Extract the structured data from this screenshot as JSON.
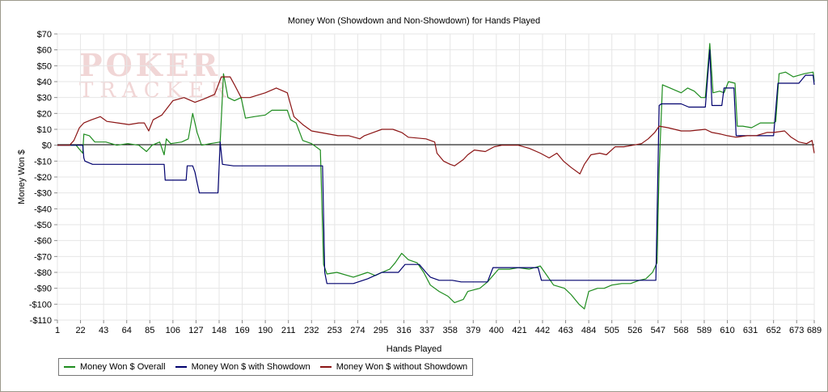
{
  "watermark": {
    "line1": "POKER",
    "line2": "TRACKER"
  },
  "chart_data": {
    "type": "line",
    "title": "Money Won (Showdown and Non-Showdown) for Hands Played",
    "xlabel": "Hands Played",
    "ylabel": "Money Won $",
    "xlim": [
      1,
      689
    ],
    "ylim": [
      -110,
      70
    ],
    "grid": true,
    "legend_position": "bottom-left",
    "x_ticks": [
      1,
      22,
      43,
      64,
      85,
      106,
      127,
      148,
      169,
      190,
      211,
      232,
      253,
      274,
      295,
      316,
      337,
      358,
      379,
      400,
      421,
      442,
      463,
      484,
      505,
      526,
      547,
      568,
      589,
      610,
      631,
      652,
      673,
      689
    ],
    "y_ticks": [
      {
        "v": 70,
        "label": "$70"
      },
      {
        "v": 60,
        "label": "$60"
      },
      {
        "v": 50,
        "label": "$50"
      },
      {
        "v": 40,
        "label": "$40"
      },
      {
        "v": 30,
        "label": "$30"
      },
      {
        "v": 20,
        "label": "$20"
      },
      {
        "v": 10,
        "label": "$10"
      },
      {
        "v": 0,
        "label": "$0"
      },
      {
        "v": -10,
        "label": "-$10"
      },
      {
        "v": -20,
        "label": "-$20"
      },
      {
        "v": -30,
        "label": "-$30"
      },
      {
        "v": -40,
        "label": "-$40"
      },
      {
        "v": -50,
        "label": "-$50"
      },
      {
        "v": -60,
        "label": "-$60"
      },
      {
        "v": -70,
        "label": "-$70"
      },
      {
        "v": -80,
        "label": "-$80"
      },
      {
        "v": -90,
        "label": "-$90"
      },
      {
        "v": -100,
        "label": "-$100"
      },
      {
        "v": -110,
        "label": "-$110"
      }
    ],
    "series": [
      {
        "name": "Money Won $ Overall",
        "color": "#1e8c1e",
        "points": [
          [
            1,
            0
          ],
          [
            18,
            0
          ],
          [
            24,
            -5
          ],
          [
            25,
            7
          ],
          [
            30,
            6
          ],
          [
            35,
            2
          ],
          [
            45,
            2
          ],
          [
            55,
            0
          ],
          [
            65,
            1
          ],
          [
            75,
            0
          ],
          [
            82,
            -4
          ],
          [
            87,
            0
          ],
          [
            94,
            2
          ],
          [
            98,
            -6
          ],
          [
            100,
            4
          ],
          [
            104,
            1
          ],
          [
            114,
            2
          ],
          [
            120,
            4
          ],
          [
            124,
            20
          ],
          [
            128,
            8
          ],
          [
            132,
            0
          ],
          [
            140,
            1
          ],
          [
            149,
            2
          ],
          [
            152,
            45
          ],
          [
            156,
            30
          ],
          [
            162,
            28
          ],
          [
            168,
            30
          ],
          [
            172,
            17
          ],
          [
            180,
            18
          ],
          [
            190,
            19
          ],
          [
            196,
            22
          ],
          [
            206,
            22
          ],
          [
            210,
            22
          ],
          [
            213,
            16
          ],
          [
            218,
            14
          ],
          [
            224,
            3
          ],
          [
            232,
            1
          ],
          [
            240,
            -3
          ],
          [
            243,
            -75
          ],
          [
            246,
            -81
          ],
          [
            255,
            -80
          ],
          [
            270,
            -83
          ],
          [
            283,
            -80
          ],
          [
            290,
            -82
          ],
          [
            296,
            -80
          ],
          [
            303,
            -78
          ],
          [
            308,
            -74
          ],
          [
            314,
            -68
          ],
          [
            320,
            -72
          ],
          [
            328,
            -74
          ],
          [
            334,
            -80
          ],
          [
            340,
            -88
          ],
          [
            348,
            -92
          ],
          [
            356,
            -95
          ],
          [
            362,
            -99
          ],
          [
            370,
            -97
          ],
          [
            374,
            -92
          ],
          [
            385,
            -90
          ],
          [
            392,
            -86
          ],
          [
            402,
            -78
          ],
          [
            412,
            -78
          ],
          [
            420,
            -77
          ],
          [
            430,
            -78
          ],
          [
            440,
            -76
          ],
          [
            447,
            -83
          ],
          [
            452,
            -88
          ],
          [
            462,
            -90
          ],
          [
            468,
            -94
          ],
          [
            475,
            -100
          ],
          [
            480,
            -103
          ],
          [
            484,
            -92
          ],
          [
            492,
            -90
          ],
          [
            498,
            -90
          ],
          [
            505,
            -88
          ],
          [
            514,
            -87
          ],
          [
            522,
            -87
          ],
          [
            530,
            -85
          ],
          [
            536,
            -84
          ],
          [
            542,
            -80
          ],
          [
            546,
            -74
          ],
          [
            548,
            -15
          ],
          [
            551,
            38
          ],
          [
            558,
            36
          ],
          [
            568,
            33
          ],
          [
            574,
            36
          ],
          [
            580,
            34
          ],
          [
            586,
            30
          ],
          [
            590,
            30
          ],
          [
            594,
            64
          ],
          [
            597,
            33
          ],
          [
            603,
            34
          ],
          [
            607,
            33
          ],
          [
            611,
            40
          ],
          [
            617,
            39
          ],
          [
            619,
            12
          ],
          [
            624,
            12
          ],
          [
            632,
            11
          ],
          [
            640,
            14
          ],
          [
            652,
            14
          ],
          [
            654,
            15
          ],
          [
            657,
            45
          ],
          [
            663,
            46
          ],
          [
            670,
            43
          ],
          [
            680,
            45
          ],
          [
            688,
            46
          ],
          [
            689,
            40
          ]
        ]
      },
      {
        "name": "Money Won $ with Showdown",
        "color": "#00006e",
        "points": [
          [
            1,
            0
          ],
          [
            24,
            0
          ],
          [
            25,
            -8
          ],
          [
            26,
            -10
          ],
          [
            33,
            -12
          ],
          [
            98,
            -12
          ],
          [
            99,
            -22
          ],
          [
            114,
            -22
          ],
          [
            118,
            -22
          ],
          [
            119,
            -13
          ],
          [
            124,
            -13
          ],
          [
            126,
            -17
          ],
          [
            130,
            -30
          ],
          [
            144,
            -30
          ],
          [
            147,
            -30
          ],
          [
            149,
            2
          ],
          [
            151,
            -12
          ],
          [
            161,
            -13
          ],
          [
            214,
            -13
          ],
          [
            242,
            -13
          ],
          [
            244,
            -80
          ],
          [
            246,
            -87
          ],
          [
            270,
            -87
          ],
          [
            283,
            -84
          ],
          [
            296,
            -80
          ],
          [
            311,
            -80
          ],
          [
            317,
            -75
          ],
          [
            330,
            -75
          ],
          [
            336,
            -80
          ],
          [
            340,
            -83
          ],
          [
            348,
            -85
          ],
          [
            360,
            -85
          ],
          [
            368,
            -86
          ],
          [
            392,
            -86
          ],
          [
            397,
            -77
          ],
          [
            420,
            -77
          ],
          [
            431,
            -77
          ],
          [
            438,
            -77
          ],
          [
            441,
            -85
          ],
          [
            500,
            -85
          ],
          [
            545,
            -85
          ],
          [
            548,
            25
          ],
          [
            550,
            26
          ],
          [
            568,
            26
          ],
          [
            575,
            24
          ],
          [
            590,
            24
          ],
          [
            594,
            60
          ],
          [
            596,
            25
          ],
          [
            605,
            25
          ],
          [
            607,
            36
          ],
          [
            612,
            36
          ],
          [
            616,
            36
          ],
          [
            618,
            6
          ],
          [
            628,
            6
          ],
          [
            645,
            6
          ],
          [
            652,
            6
          ],
          [
            656,
            39
          ],
          [
            665,
            39
          ],
          [
            675,
            39
          ],
          [
            681,
            44
          ],
          [
            688,
            44
          ],
          [
            689,
            38
          ]
        ]
      },
      {
        "name": "Money Won $ without Showdown",
        "color": "#8b1414",
        "points": [
          [
            1,
            0
          ],
          [
            12,
            0
          ],
          [
            16,
            3
          ],
          [
            21,
            11
          ],
          [
            25,
            14
          ],
          [
            32,
            16
          ],
          [
            40,
            18
          ],
          [
            46,
            15
          ],
          [
            56,
            14
          ],
          [
            66,
            13
          ],
          [
            75,
            14
          ],
          [
            80,
            14
          ],
          [
            84,
            9
          ],
          [
            88,
            16
          ],
          [
            96,
            19
          ],
          [
            106,
            28
          ],
          [
            116,
            30
          ],
          [
            126,
            27
          ],
          [
            134,
            29
          ],
          [
            144,
            32
          ],
          [
            150,
            43
          ],
          [
            158,
            43
          ],
          [
            162,
            38
          ],
          [
            168,
            30
          ],
          [
            176,
            30
          ],
          [
            190,
            33
          ],
          [
            200,
            36
          ],
          [
            210,
            33
          ],
          [
            216,
            18
          ],
          [
            224,
            13
          ],
          [
            232,
            9
          ],
          [
            248,
            7
          ],
          [
            256,
            6
          ],
          [
            266,
            6
          ],
          [
            276,
            4
          ],
          [
            280,
            6
          ],
          [
            288,
            8
          ],
          [
            296,
            10
          ],
          [
            306,
            10
          ],
          [
            314,
            8
          ],
          [
            320,
            5
          ],
          [
            336,
            4
          ],
          [
            344,
            2
          ],
          [
            346,
            -5
          ],
          [
            352,
            -10
          ],
          [
            358,
            -12
          ],
          [
            362,
            -13
          ],
          [
            370,
            -9
          ],
          [
            374,
            -6
          ],
          [
            380,
            -3
          ],
          [
            390,
            -4
          ],
          [
            398,
            -1
          ],
          [
            405,
            0
          ],
          [
            412,
            0
          ],
          [
            420,
            0
          ],
          [
            430,
            -2
          ],
          [
            440,
            -5
          ],
          [
            448,
            -8
          ],
          [
            455,
            -5
          ],
          [
            461,
            -10
          ],
          [
            468,
            -14
          ],
          [
            476,
            -18
          ],
          [
            480,
            -12
          ],
          [
            486,
            -6
          ],
          [
            494,
            -5
          ],
          [
            500,
            -6
          ],
          [
            508,
            -1
          ],
          [
            516,
            -1
          ],
          [
            524,
            0
          ],
          [
            532,
            1
          ],
          [
            538,
            4
          ],
          [
            544,
            8
          ],
          [
            548,
            12
          ],
          [
            556,
            11
          ],
          [
            568,
            9
          ],
          [
            576,
            9
          ],
          [
            590,
            10
          ],
          [
            596,
            8
          ],
          [
            604,
            7
          ],
          [
            610,
            6
          ],
          [
            618,
            5
          ],
          [
            628,
            6
          ],
          [
            636,
            6
          ],
          [
            646,
            8
          ],
          [
            652,
            8
          ],
          [
            662,
            9
          ],
          [
            668,
            5
          ],
          [
            675,
            2
          ],
          [
            682,
            1
          ],
          [
            687,
            3
          ],
          [
            689,
            -5
          ]
        ]
      }
    ]
  }
}
